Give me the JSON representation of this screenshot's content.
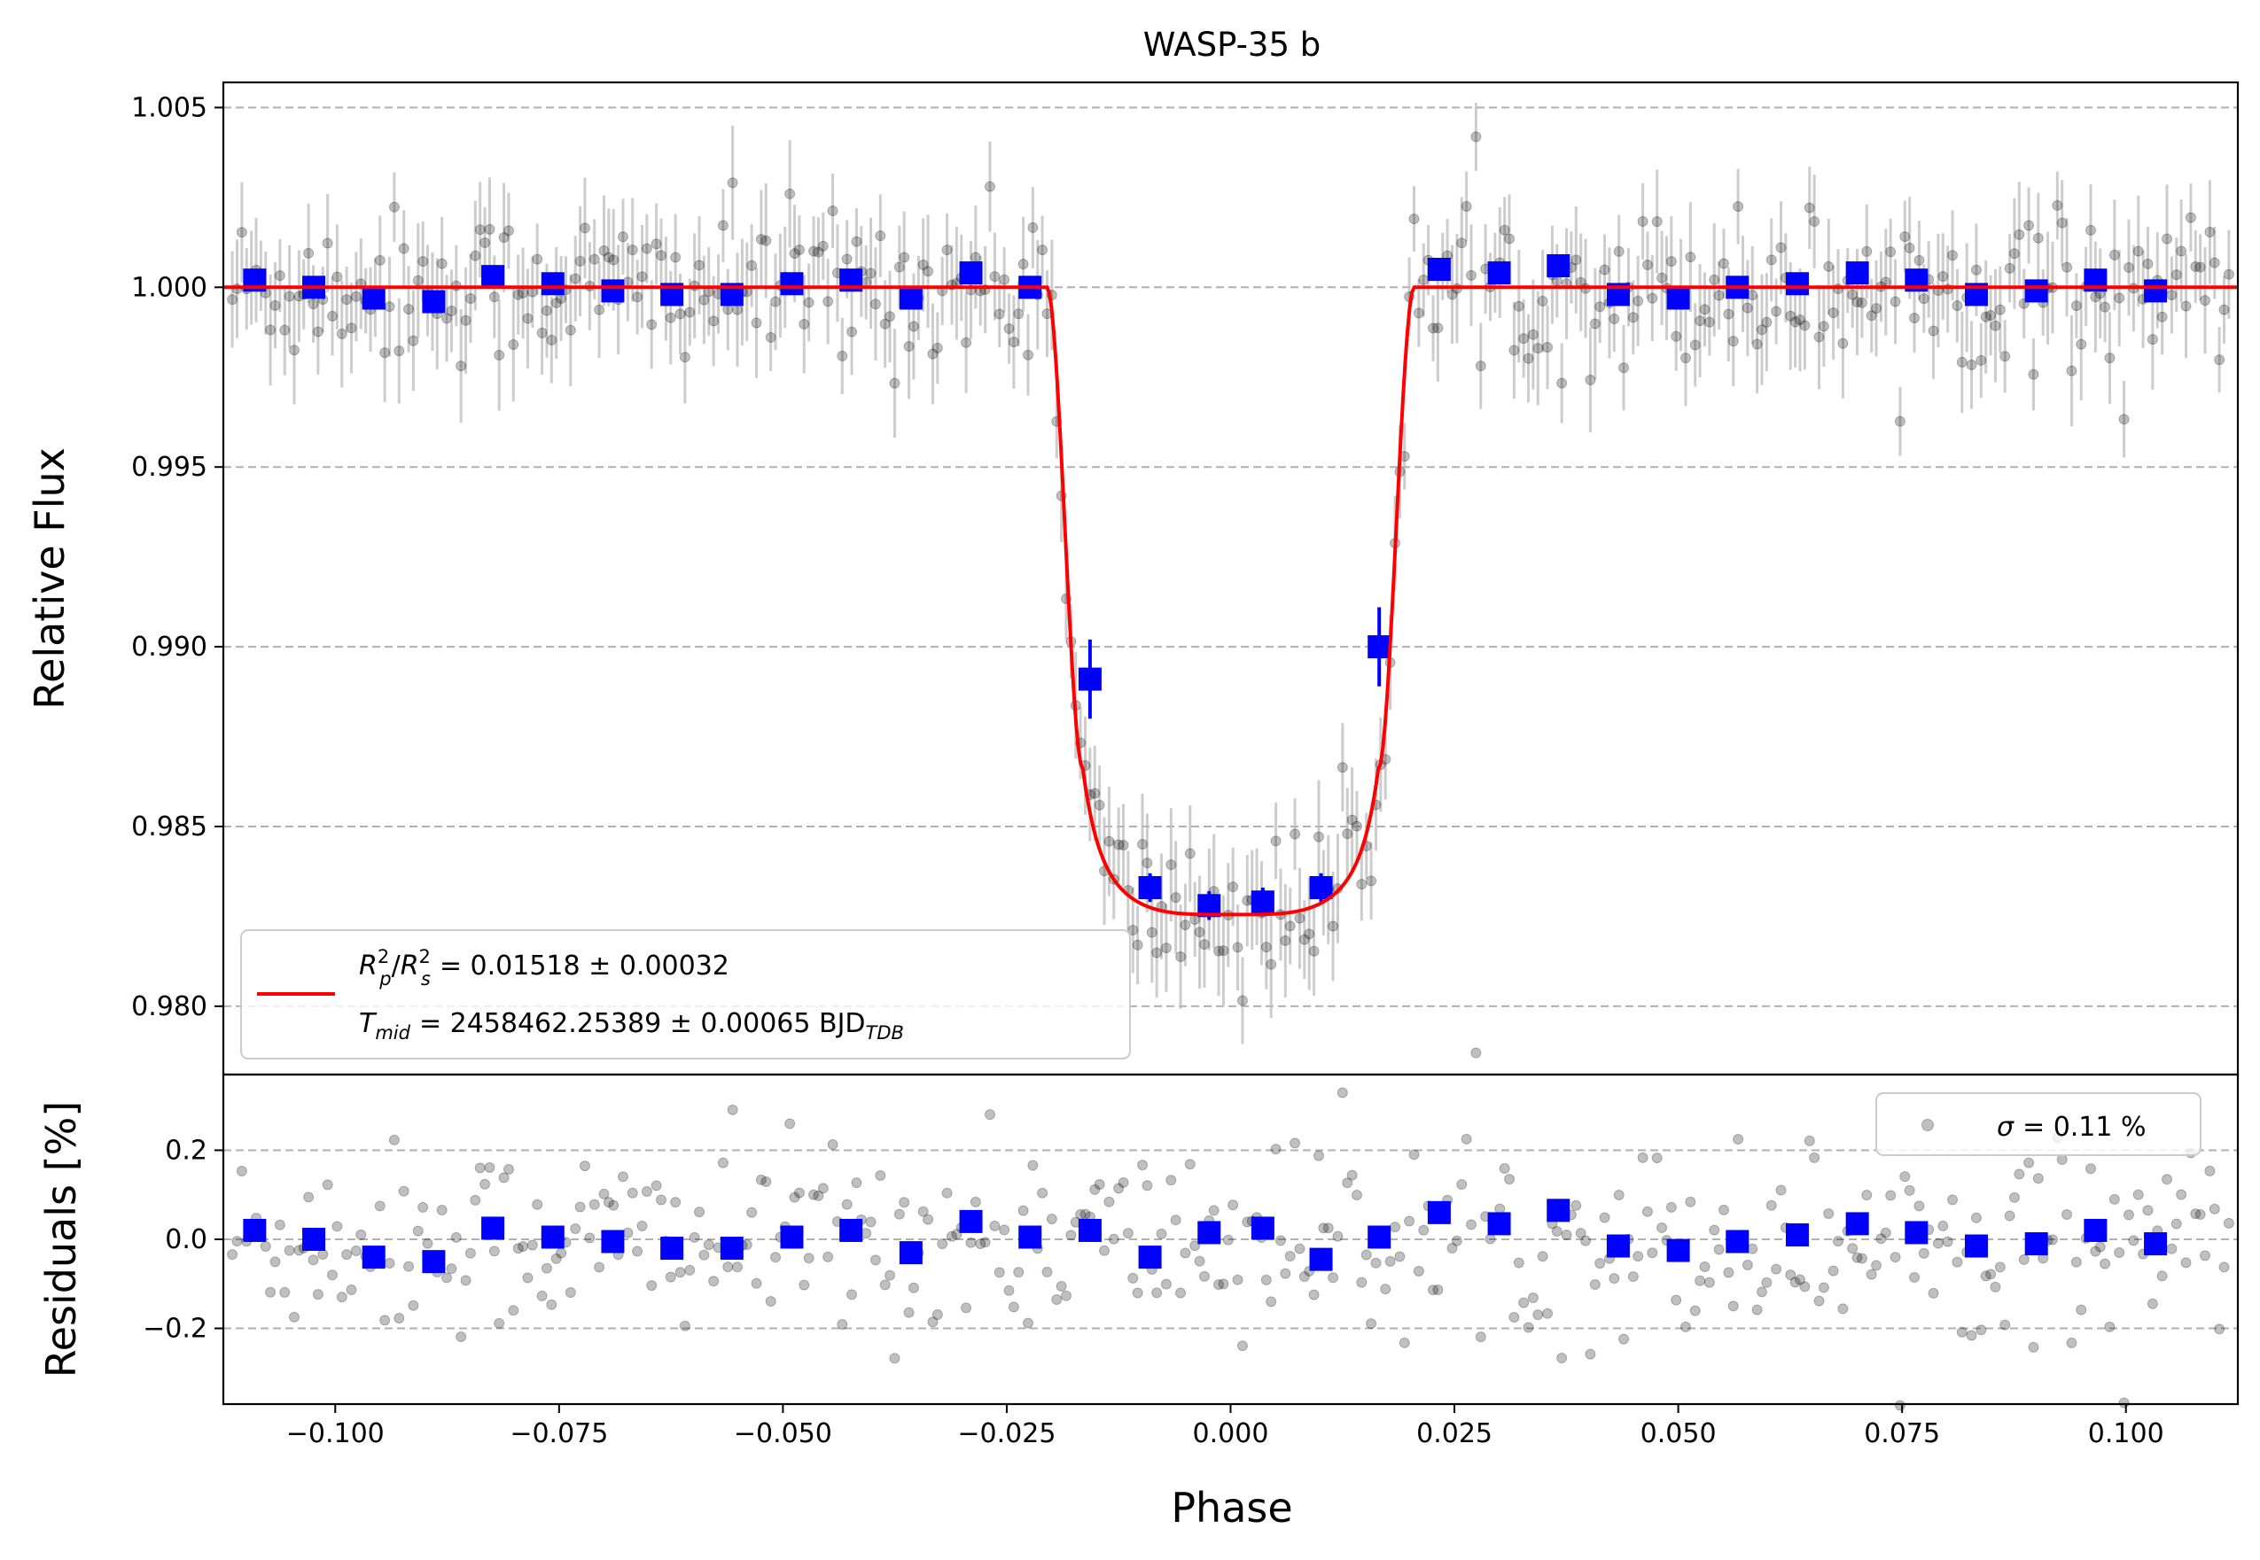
{
  "chart_data": [
    {
      "type": "scatter",
      "panel": "main",
      "title": "WASP-35 b",
      "xlabel": "",
      "ylabel": "Relative Flux",
      "xlim": [
        -0.1125,
        0.1125
      ],
      "ylim": [
        0.9781,
        1.0057
      ],
      "grid": "horizontal dashed",
      "yticks": [
        "1.005",
        "1.000",
        "0.995",
        "0.990",
        "0.985",
        "0.980"
      ],
      "ytick_values": [
        1.005,
        1.0,
        0.995,
        0.99,
        0.985,
        0.98
      ],
      "model": {
        "name": "transit model",
        "color": "#ff0000",
        "baseline": 1.0,
        "depth_center": 0.98255,
        "flat_bottom_flux": 0.98255,
        "t1": -0.0205,
        "t2": -0.0165,
        "t3": 0.0165,
        "t4": 0.0205,
        "contact_flux": 0.9866
      },
      "binned_series": {
        "name": "binned data",
        "color": "#0000ff",
        "x": [
          -0.109,
          -0.1024,
          -0.0957,
          -0.089,
          -0.0824,
          -0.0757,
          -0.069,
          -0.0624,
          -0.0557,
          -0.049,
          -0.0424,
          -0.0357,
          -0.029,
          -0.0224,
          -0.0157,
          -0.009,
          -0.0024,
          0.0036,
          0.0101,
          0.0166,
          0.0233,
          0.03,
          0.0366,
          0.0433,
          0.05,
          0.0566,
          0.0633,
          0.07,
          0.0766,
          0.0833,
          0.09,
          0.0966,
          0.1033
        ],
        "y": [
          1.0002,
          1.0,
          0.9997,
          0.9996,
          1.0003,
          1.0001,
          0.9999,
          0.9998,
          0.9998,
          1.0001,
          1.0002,
          0.9997,
          1.0004,
          1.0,
          0.9891,
          0.9833,
          0.9828,
          0.9829,
          0.9833,
          0.99,
          1.0005,
          1.0004,
          1.0006,
          0.9998,
          0.9997,
          1.0,
          1.0001,
          1.0004,
          1.0002,
          0.9998,
          0.9999,
          1.0002,
          0.9999
        ]
      },
      "raw_series": {
        "name": "unbinned data",
        "color": "#000000",
        "count": 420,
        "scatter_sigma_flux": 0.0011,
        "errorbar_color": "#bbbbbb"
      },
      "legend": {
        "placement": "lower-left",
        "entry_1_line1": "= 0.01518 ± 0.00032",
        "entry_1_line2_prefix": "T",
        "entry_1_line2_sub": "mid",
        "entry_1_line2_value": "= 2458462.25389 ± 0.00065 BJD",
        "entry_1_line2_unit_sub": "TDB",
        "rp_symbol": "R",
        "rp_sub": "p",
        "rs_symbol": "R",
        "rs_sub": "s",
        "sup": "2",
        "slash": "/"
      }
    },
    {
      "type": "scatter",
      "panel": "residuals",
      "xlabel": "Phase",
      "ylabel": "Residuals [%]",
      "xlim": [
        -0.1125,
        0.1125
      ],
      "ylim": [
        -0.37,
        0.37
      ],
      "grid": "horizontal dashed",
      "yticks": [
        "0.2",
        "0.0",
        "−0.2"
      ],
      "ytick_values": [
        0.2,
        0.0,
        -0.2
      ],
      "xticks": [
        "−0.100",
        "−0.075",
        "−0.050",
        "−0.025",
        "0.000",
        "0.025",
        "0.050",
        "0.075",
        "0.100"
      ],
      "xtick_values": [
        -0.1,
        -0.075,
        -0.05,
        -0.025,
        0.0,
        0.025,
        0.05,
        0.075,
        0.1
      ],
      "binned_series": {
        "name": "binned residuals",
        "color": "#0000ff",
        "x": [
          -0.109,
          -0.1024,
          -0.0957,
          -0.089,
          -0.0824,
          -0.0757,
          -0.069,
          -0.0624,
          -0.0557,
          -0.049,
          -0.0424,
          -0.0357,
          -0.029,
          -0.0224,
          -0.0157,
          -0.009,
          -0.0024,
          0.0036,
          0.0101,
          0.0166,
          0.0233,
          0.03,
          0.0366,
          0.0433,
          0.05,
          0.0566,
          0.0633,
          0.07,
          0.0766,
          0.0833,
          0.09,
          0.0966,
          0.1033
        ],
        "y": [
          0.02,
          0.0,
          -0.04,
          -0.05,
          0.025,
          0.005,
          -0.005,
          -0.02,
          -0.02,
          0.005,
          0.02,
          -0.03,
          0.04,
          0.005,
          0.02,
          -0.04,
          0.015,
          0.025,
          -0.045,
          0.005,
          0.06,
          0.035,
          0.065,
          -0.015,
          -0.025,
          -0.005,
          0.01,
          0.035,
          0.015,
          -0.015,
          -0.01,
          0.02,
          -0.01
        ]
      },
      "legend": {
        "placement": "top-right",
        "sigma_symbol": "σ",
        "sigma_text": "= 0.11 %"
      }
    }
  ],
  "colors": {
    "model": "#ff0000",
    "binned": "#0000ff",
    "raw": "#000000",
    "grid": "#b0b0b0"
  }
}
